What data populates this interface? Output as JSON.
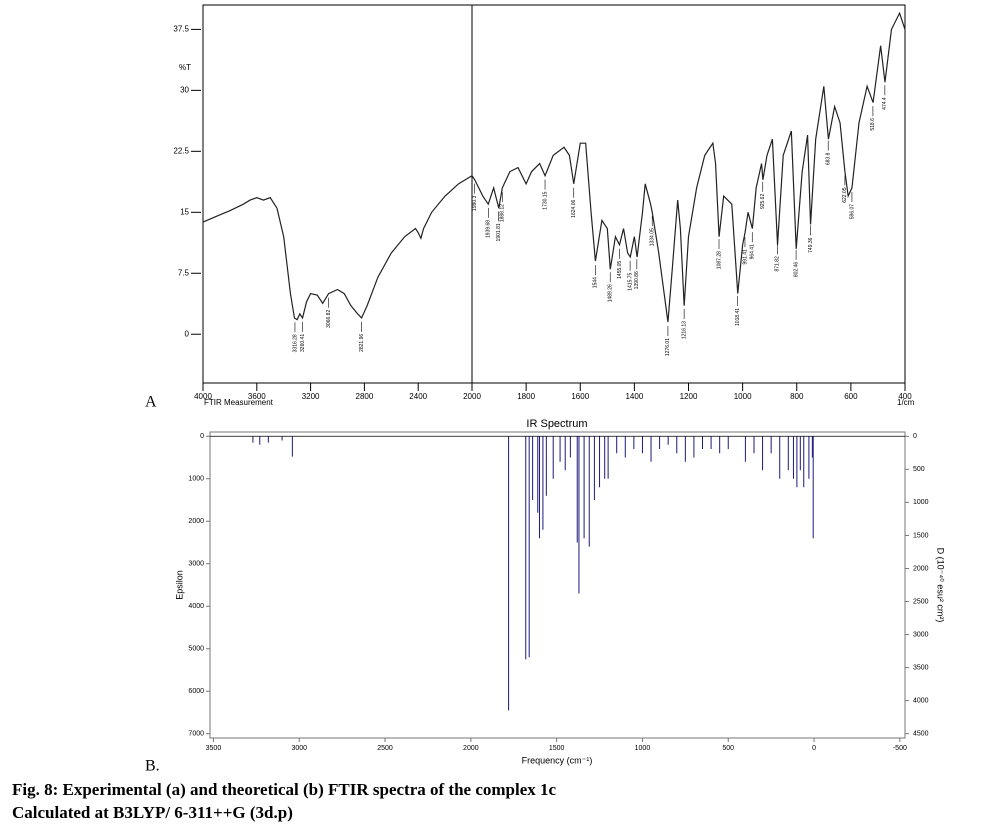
{
  "caption": [
    "Fig. 8: Experimental (a) and theoretical (b) FTIR spectra of the complex 1c",
    "Calculated at B3LYP/ 6-311++G (3d.p)"
  ],
  "chart_data": [
    {
      "type": "line",
      "panel_label": "A",
      "y_label": "%T",
      "x_label_left": "FTIR Measurement",
      "x_label_right": "1/cm",
      "xlim": [
        4000,
        400
      ],
      "x_scale_break": 2000,
      "ylim": [
        -6,
        40.5
      ],
      "xticks": [
        4000,
        3600,
        3200,
        2800,
        2400,
        2000,
        1800,
        1600,
        1400,
        1200,
        1000,
        800,
        600,
        400
      ],
      "yticks": [
        0,
        7.5,
        15,
        22.5,
        30,
        37.5
      ],
      "series": [
        {
          "name": "%T",
          "color": "#222222",
          "x": [
            4000,
            3900,
            3800,
            3700,
            3650,
            3600,
            3550,
            3500,
            3450,
            3400,
            3350,
            3320,
            3300,
            3280,
            3260,
            3230,
            3200,
            3150,
            3110,
            3066,
            3000,
            2950,
            2900,
            2850,
            2821,
            2780,
            2700,
            2600,
            2500,
            2420,
            2400,
            2380,
            2360,
            2300,
            2200,
            2100,
            2050,
            2000,
            1990,
            1960,
            1940,
            1920,
            1901,
            1888,
            1860,
            1830,
            1800,
            1780,
            1750,
            1730,
            1700,
            1660,
            1640,
            1624,
            1600,
            1580,
            1560,
            1544,
            1520,
            1500,
            1489,
            1470,
            1455,
            1440,
            1425,
            1415,
            1400,
            1390,
            1370,
            1360,
            1340,
            1334,
            1310,
            1290,
            1276,
            1260,
            1240,
            1230,
            1216,
            1200,
            1170,
            1140,
            1110,
            1100,
            1087,
            1070,
            1040,
            1018,
            1000,
            991,
            980,
            964,
            950,
            930,
            925,
            910,
            890,
            871,
            850,
            820,
            802,
            780,
            760,
            749,
            730,
            700,
            683,
            660,
            640,
            622,
            610,
            596,
            570,
            540,
            518,
            500,
            490,
            474,
            450,
            420,
            400
          ],
          "values": [
            13.8,
            14.5,
            15.2,
            16,
            16.5,
            16.8,
            16.5,
            16.8,
            15.5,
            12,
            5,
            2,
            1.8,
            2.5,
            2,
            4,
            5,
            4.8,
            3.8,
            5,
            5.5,
            5,
            3.5,
            2.5,
            2,
            3.5,
            7,
            10,
            12,
            13,
            12.5,
            11.8,
            13,
            15,
            17,
            18.5,
            19,
            19.5,
            19,
            17,
            16,
            18,
            15.5,
            18,
            20,
            20.5,
            18.5,
            20,
            21,
            19.5,
            22,
            23,
            22,
            18.5,
            23.5,
            23.5,
            15,
            9,
            14,
            13,
            8,
            12,
            11,
            13,
            10,
            9.5,
            12,
            9.5,
            15,
            18.5,
            16,
            15,
            10,
            5,
            1.5,
            8,
            16.5,
            13,
            3.5,
            12,
            18,
            22,
            23.5,
            21,
            12,
            17,
            16,
            5,
            11,
            12.5,
            15,
            13,
            18,
            21,
            19,
            22,
            24,
            11,
            22,
            25,
            10.5,
            20,
            24.5,
            13.5,
            24,
            30.5,
            24,
            28,
            26,
            20,
            17,
            18,
            26,
            30.5,
            28.5,
            33,
            35.5,
            31,
            37.5,
            39.5,
            37.5
          ]
        }
      ],
      "peaks": [
        3316.28,
        3260.41,
        3066.82,
        2821.96,
        1990.3,
        1939.68,
        1901.81,
        1888.12,
        1730.15,
        1624.06,
        1544.0,
        1489.26,
        1455.05,
        1415.75,
        1390.86,
        1334.05,
        1276.01,
        1216.13,
        1087.28,
        1018.41,
        991.41,
        964.41,
        925.62,
        871.82,
        802.46,
        749.36,
        683.8,
        622.05,
        596.07,
        518.6,
        474.4
      ]
    },
    {
      "type": "stick",
      "title": "IR Spectrum",
      "panel_label": "B.",
      "x_label": "Frequency (cm⁻¹)",
      "y_label": "Epsilon",
      "y2_label": "D (10⁻⁴⁰ esu² cm²)",
      "xlim": [
        3520,
        -530
      ],
      "ylim": [
        -100,
        7100
      ],
      "y2lim": [
        -65,
        4565
      ],
      "xticks": [
        3500,
        3000,
        2500,
        2000,
        1500,
        1000,
        500,
        0,
        -500
      ],
      "yticks": [
        0,
        1000,
        2000,
        3000,
        4000,
        5000,
        6000,
        7000
      ],
      "y2ticks": [
        0,
        500,
        1000,
        1500,
        2000,
        2500,
        3000,
        3500,
        4000,
        4500
      ],
      "series": [
        {
          "name": "Epsilon",
          "color": "#1a1a7a",
          "x": [
            3270,
            3230,
            3180,
            3100,
            3040,
            1780,
            1680,
            1660,
            1640,
            1610,
            1600,
            1580,
            1560,
            1520,
            1480,
            1450,
            1420,
            1380,
            1370,
            1340,
            1310,
            1280,
            1250,
            1220,
            1200,
            1150,
            1100,
            1050,
            1000,
            950,
            900,
            850,
            800,
            750,
            700,
            650,
            600,
            550,
            500,
            400,
            350,
            300,
            250,
            200,
            150,
            120,
            100,
            80,
            60,
            30,
            10,
            5
          ],
          "values": [
            150,
            200,
            150,
            100,
            480,
            6450,
            5250,
            5200,
            1500,
            1800,
            2400,
            2200,
            1400,
            1000,
            600,
            800,
            500,
            2500,
            3700,
            2400,
            2600,
            1500,
            1200,
            1000,
            1000,
            400,
            500,
            300,
            400,
            600,
            300,
            200,
            400,
            600,
            500,
            300,
            300,
            400,
            300,
            600,
            400,
            800,
            400,
            1000,
            800,
            1000,
            1200,
            800,
            1200,
            1000,
            500,
            2400
          ]
        }
      ]
    }
  ]
}
